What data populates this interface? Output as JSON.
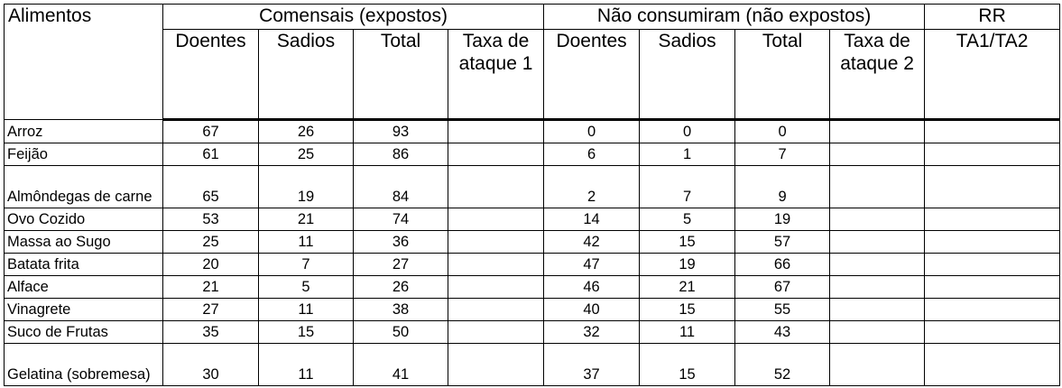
{
  "header": {
    "col_food": "Alimentos",
    "group_exposed": "Comensais (expostos)",
    "group_unexposed": "Não consumiram (não expostos)",
    "col_rr": "RR",
    "col_rr_sub": "TA1/TA2",
    "sub_sick": "Doentes",
    "sub_healthy": "Sadios",
    "sub_total": "Total",
    "sub_rate1": "Taxa de ataque 1",
    "sub_rate2": "Taxa de ataque 2"
  },
  "rows": [
    {
      "food": "Arroz",
      "e_sick": "67",
      "e_healthy": "26",
      "e_total": "93",
      "ta1": "",
      "u_sick": "0",
      "u_healthy": "0",
      "u_total": "0",
      "ta2": "",
      "rr": ""
    },
    {
      "food": "Feijão",
      "e_sick": "61",
      "e_healthy": "25",
      "e_total": "86",
      "ta1": "",
      "u_sick": "6",
      "u_healthy": "1",
      "u_total": "7",
      "ta2": "",
      "rr": ""
    },
    {
      "food": "Almôndegas de carne",
      "e_sick": "65",
      "e_healthy": "19",
      "e_total": "84",
      "ta1": "",
      "u_sick": "2",
      "u_healthy": "7",
      "u_total": "9",
      "ta2": "",
      "rr": ""
    },
    {
      "food": "Ovo Cozido",
      "e_sick": "53",
      "e_healthy": "21",
      "e_total": "74",
      "ta1": "",
      "u_sick": "14",
      "u_healthy": "5",
      "u_total": "19",
      "ta2": "",
      "rr": ""
    },
    {
      "food": "Massa ao Sugo",
      "e_sick": "25",
      "e_healthy": "11",
      "e_total": "36",
      "ta1": "",
      "u_sick": "42",
      "u_healthy": "15",
      "u_total": "57",
      "ta2": "",
      "rr": ""
    },
    {
      "food": "Batata frita",
      "e_sick": "20",
      "e_healthy": "7",
      "e_total": "27",
      "ta1": "",
      "u_sick": "47",
      "u_healthy": "19",
      "u_total": "66",
      "ta2": "",
      "rr": ""
    },
    {
      "food": "Alface",
      "e_sick": "21",
      "e_healthy": "5",
      "e_total": "26",
      "ta1": "",
      "u_sick": "46",
      "u_healthy": "21",
      "u_total": "67",
      "ta2": "",
      "rr": ""
    },
    {
      "food": "Vinagrete",
      "e_sick": "27",
      "e_healthy": "11",
      "e_total": "38",
      "ta1": "",
      "u_sick": "40",
      "u_healthy": "15",
      "u_total": "55",
      "ta2": "",
      "rr": ""
    },
    {
      "food": "Suco de Frutas",
      "e_sick": "35",
      "e_healthy": "15",
      "e_total": "50",
      "ta1": "",
      "u_sick": "32",
      "u_healthy": "11",
      "u_total": "43",
      "ta2": "",
      "rr": ""
    },
    {
      "food": "Gelatina (sobremesa)",
      "e_sick": "30",
      "e_healthy": "11",
      "e_total": "41",
      "ta1": "",
      "u_sick": "37",
      "u_healthy": "15",
      "u_total": "52",
      "ta2": "",
      "rr": ""
    }
  ]
}
